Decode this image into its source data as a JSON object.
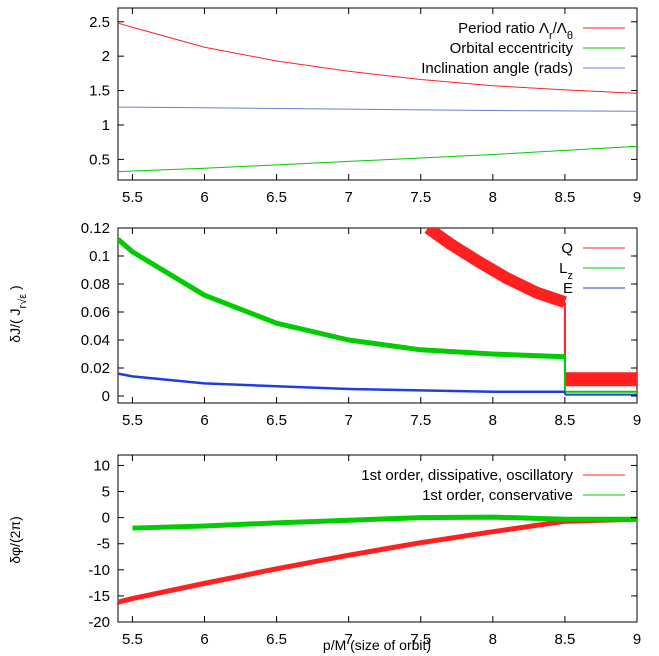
{
  "chart_data": [
    {
      "type": "line",
      "xlim": [
        5.4,
        9
      ],
      "ylim": [
        0.2,
        2.7
      ],
      "xticks": [
        "5.5",
        "6",
        "6.5",
        "7",
        "7.5",
        "8",
        "8.5",
        "9"
      ],
      "yticks": [
        "0.5",
        "1",
        "1.5",
        "2",
        "2.5"
      ],
      "legend_position": "top-right",
      "series": [
        {
          "name": "Period ratio Λ_r/Λ_θ",
          "color": "#ff2020",
          "x": [
            5.4,
            5.5,
            6.0,
            6.5,
            7.0,
            7.5,
            8.0,
            8.5,
            9.0
          ],
          "y": [
            2.48,
            2.42,
            2.13,
            1.93,
            1.78,
            1.66,
            1.57,
            1.51,
            1.46
          ]
        },
        {
          "name": "Orbital eccentricity",
          "color": "#00cc00",
          "x": [
            5.4,
            5.5,
            6.0,
            6.5,
            7.0,
            7.5,
            8.0,
            8.5,
            9.0
          ],
          "y": [
            0.32,
            0.33,
            0.37,
            0.42,
            0.47,
            0.52,
            0.57,
            0.63,
            0.69
          ]
        },
        {
          "name": "Inclination angle (rads)",
          "color": "#6a7dd8",
          "x": [
            5.4,
            6.0,
            7.0,
            8.0,
            9.0
          ],
          "y": [
            1.26,
            1.25,
            1.23,
            1.21,
            1.2
          ]
        }
      ]
    },
    {
      "type": "line",
      "ylabel": "δJ/( J_r√ε )",
      "xlim": [
        5.4,
        9
      ],
      "ylim": [
        -0.005,
        0.12
      ],
      "xticks": [
        "5.5",
        "6",
        "6.5",
        "7",
        "7.5",
        "8",
        "8.5",
        "9"
      ],
      "yticks": [
        "0",
        "0.02",
        "0.04",
        "0.06",
        "0.08",
        "0.1",
        "0.12"
      ],
      "legend_position": "top-right",
      "series": [
        {
          "name": "Q",
          "color": "#ff2020",
          "x": [
            7.55,
            7.7,
            7.9,
            8.1,
            8.3,
            8.5
          ],
          "y": [
            0.12,
            0.109,
            0.096,
            0.084,
            0.074,
            0.067
          ],
          "after_x": [
            8.5,
            9.0
          ],
          "after_y": [
            0.012,
            0.012
          ]
        },
        {
          "name": "L_z",
          "color": "#00cc00",
          "x": [
            5.4,
            5.5,
            6.0,
            6.5,
            7.0,
            7.5,
            8.0,
            8.5
          ],
          "y": [
            0.112,
            0.103,
            0.072,
            0.052,
            0.04,
            0.033,
            0.03,
            0.028
          ],
          "after_x": [
            8.5,
            9.0
          ],
          "after_y": [
            0.003,
            0.003
          ]
        },
        {
          "name": "E",
          "color": "#1f3ee0",
          "x": [
            5.4,
            5.5,
            6.0,
            6.5,
            7.0,
            7.5,
            8.0,
            8.5
          ],
          "y": [
            0.016,
            0.014,
            0.009,
            0.007,
            0.005,
            0.004,
            0.003,
            0.003
          ],
          "after_x": [
            8.5,
            9.0
          ],
          "after_y": [
            0.001,
            0.001
          ]
        }
      ]
    },
    {
      "type": "line",
      "xlabel": "p/M   (size of orbit)",
      "ylabel": "δφ/(2π)",
      "xlim": [
        5.4,
        9
      ],
      "ylim": [
        -20,
        12
      ],
      "xticks": [
        "5.5",
        "6",
        "6.5",
        "7",
        "7.5",
        "8",
        "8.5",
        "9"
      ],
      "yticks": [
        "-20",
        "-15",
        "-10",
        "-5",
        "0",
        "5",
        "10"
      ],
      "legend_position": "top-right",
      "series": [
        {
          "name": "1st order, dissipative, oscillatory",
          "color": "#ff2020",
          "x": [
            5.4,
            5.5,
            6.0,
            6.5,
            7.0,
            7.5,
            8.0,
            8.5,
            9.0
          ],
          "y": [
            -16.2,
            -15.5,
            -12.6,
            -9.8,
            -7.2,
            -4.8,
            -2.7,
            -0.7,
            -0.3
          ]
        },
        {
          "name": "1st order, conservative",
          "color": "#00cc00",
          "x": [
            5.5,
            6.0,
            6.5,
            7.0,
            7.5,
            8.0,
            8.5,
            9.0
          ],
          "y": [
            -2.0,
            -1.6,
            -1.0,
            -0.5,
            0.0,
            0.1,
            -0.3,
            -0.3
          ]
        }
      ]
    }
  ]
}
